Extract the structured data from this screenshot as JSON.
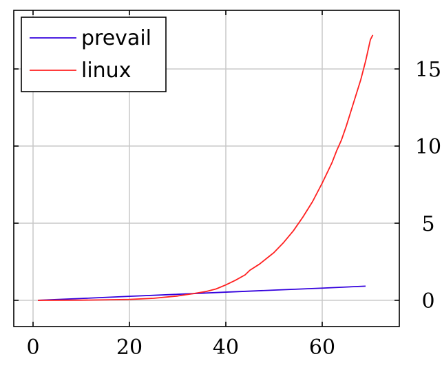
{
  "chart_data": {
    "type": "line",
    "title": "",
    "xlabel": "",
    "ylabel": "",
    "xlim": [
      -4,
      76
    ],
    "ylim": [
      -1.7,
      18.8
    ],
    "x_ticks": [
      0,
      20,
      40,
      60
    ],
    "y_ticks": [
      0,
      5,
      10,
      15
    ],
    "x_tick_labels": [
      "0",
      "20",
      "40",
      "60"
    ],
    "y_tick_labels": [
      "0",
      "5",
      "10",
      "15"
    ],
    "y_axis_side": "right",
    "grid": true,
    "legend_position": "top-left",
    "series": [
      {
        "name": "prevail",
        "color": "#3300dd",
        "points": [
          [
            1,
            0.0
          ],
          [
            10,
            0.12
          ],
          [
            20,
            0.26
          ],
          [
            30,
            0.39
          ],
          [
            40,
            0.53
          ],
          [
            50,
            0.66
          ],
          [
            60,
            0.79
          ],
          [
            69,
            0.92
          ]
        ]
      },
      {
        "name": "linux",
        "color": "#ff2020",
        "points": [
          [
            1,
            0.0
          ],
          [
            10,
            0.01
          ],
          [
            15,
            0.03
          ],
          [
            20,
            0.06
          ],
          [
            25,
            0.13
          ],
          [
            30,
            0.28
          ],
          [
            33,
            0.42
          ],
          [
            36,
            0.58
          ],
          [
            38,
            0.74
          ],
          [
            40,
            1.0
          ],
          [
            42,
            1.3
          ],
          [
            44,
            1.65
          ],
          [
            45,
            1.95
          ],
          [
            47,
            2.35
          ],
          [
            49,
            2.85
          ],
          [
            50,
            3.1
          ],
          [
            52,
            3.75
          ],
          [
            54,
            4.5
          ],
          [
            56,
            5.4
          ],
          [
            58,
            6.4
          ],
          [
            60,
            7.6
          ],
          [
            62,
            8.9
          ],
          [
            63,
            9.7
          ],
          [
            64,
            10.4
          ],
          [
            65,
            11.3
          ],
          [
            66,
            12.3
          ],
          [
            67,
            13.3
          ],
          [
            68,
            14.3
          ],
          [
            69,
            15.5
          ],
          [
            70,
            16.9
          ],
          [
            70.5,
            17.2
          ]
        ]
      }
    ]
  }
}
